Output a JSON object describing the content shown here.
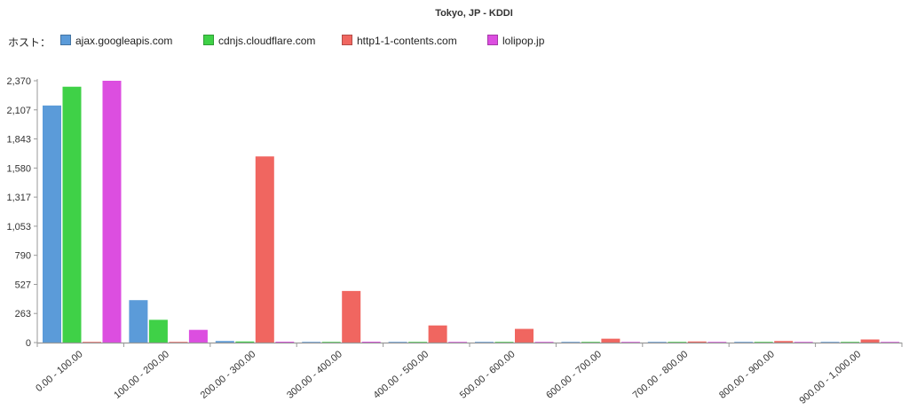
{
  "chart_data": {
    "type": "bar",
    "title": "Tokyo, JP - KDDI",
    "legend_label": "ホスト：",
    "legend_position": "top-left",
    "categories": [
      "0.00 - 100.00",
      "100.00 - 200.00",
      "200.00 - 300.00",
      "300.00 - 400.00",
      "400.00 - 500.00",
      "500.00 - 600.00",
      "600.00 - 700.00",
      "700.00 - 800.00",
      "800.00 - 900.00",
      "900.00 - 1,000.00"
    ],
    "series": [
      {
        "name": "ajax.googleapis.com",
        "color": "#5b9bd9",
        "values": [
          2146,
          384,
          14,
          1,
          1,
          1,
          1,
          1,
          1,
          1
        ]
      },
      {
        "name": "cdnjs.cloudflare.com",
        "color": "#3fd147",
        "values": [
          2316,
          206,
          10,
          1,
          2,
          1,
          1,
          1,
          1,
          2
        ]
      },
      {
        "name": "http1-1-contents.com",
        "color": "#f06660",
        "values": [
          1,
          6,
          1685,
          467,
          155,
          124,
          35,
          10,
          14,
          28
        ]
      },
      {
        "name": "lolipop.jp",
        "color": "#dc4ee0",
        "values": [
          2370,
          115,
          8,
          8,
          4,
          3,
          2,
          1,
          1,
          1
        ]
      }
    ],
    "y_ticks": [
      "0",
      "263",
      "527",
      "790",
      "1,053",
      "1,317",
      "1,580",
      "1,843",
      "2,107",
      "2,370"
    ],
    "ylim": [
      0,
      2370
    ],
    "grid": false,
    "xlabel": "",
    "ylabel": ""
  }
}
